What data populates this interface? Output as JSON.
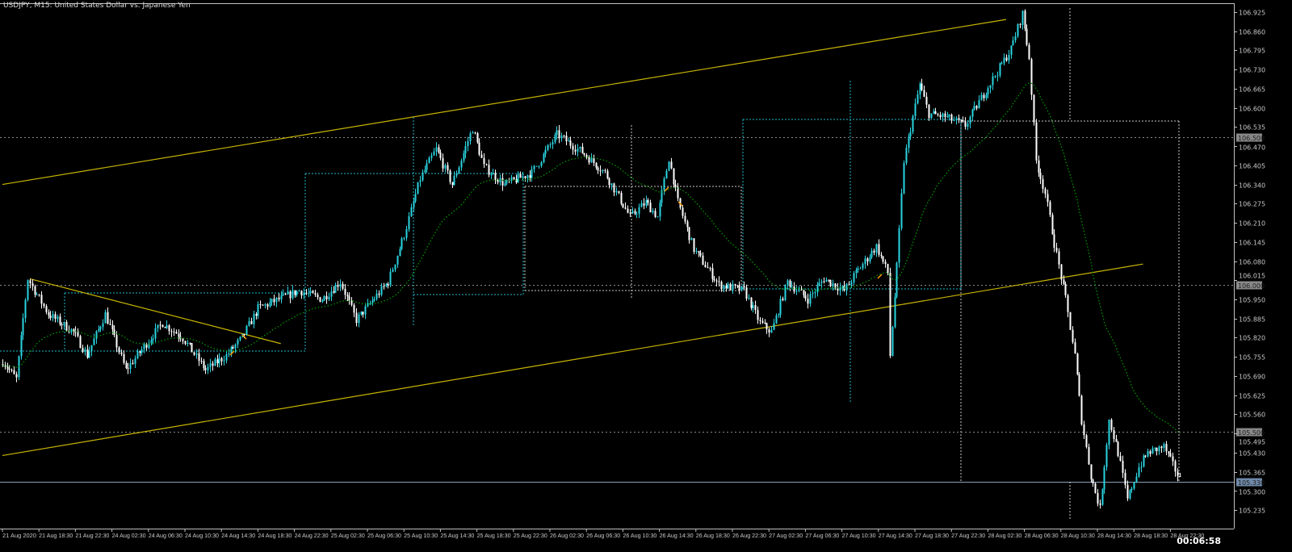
{
  "window": {
    "title": "USDJPY, M15:  United States Dollar vs. Japanese Yen",
    "countdown": "00:06:58"
  },
  "colors": {
    "background": "#000000",
    "axis": "#c0c0c0",
    "bull": "#2ad4e0",
    "bear": "#ffffff",
    "ma": "#00a000",
    "channel": "#c8b400",
    "box_cyan": "#20b8c8",
    "box_white": "#c8c8c8",
    "bid_line": "#8aa0b8"
  },
  "chart_data": {
    "type": "candlestick",
    "symbol": "USDJPY",
    "timeframe": "M15",
    "ylim": [
      105.21,
      106.95
    ],
    "y_ticks": [
      "106.925",
      "106.860",
      "106.795",
      "106.730",
      "106.665",
      "106.600",
      "106.535",
      "106.470",
      "106.405",
      "106.340",
      "106.275",
      "106.210",
      "106.145",
      "106.080",
      "106.015",
      "105.950",
      "105.885",
      "105.820",
      "105.755",
      "105.690",
      "105.625",
      "105.560",
      "105.495",
      "105.430",
      "105.365",
      "105.300",
      "105.235"
    ],
    "price_levels": [
      {
        "label": "106.500",
        "value": 106.5,
        "style": "dashed"
      },
      {
        "label": "106.000",
        "value": 106.0,
        "style": "dashed"
      },
      {
        "label": "105.500",
        "value": 105.5,
        "style": "dashed"
      },
      {
        "label": "105.330",
        "value": 105.33,
        "style": "bid"
      }
    ],
    "x_ticks": [
      "21 Aug 2020",
      "21 Aug 18:30",
      "21 Aug 22:30",
      "24 Aug 02:30",
      "24 Aug 06:30",
      "24 Aug 10:30",
      "24 Aug 14:30",
      "24 Aug 18:30",
      "24 Aug 22:30",
      "25 Aug 02:30",
      "25 Aug 06:30",
      "25 Aug 10:30",
      "25 Aug 14:30",
      "25 Aug 18:30",
      "25 Aug 22:30",
      "26 Aug 02:30",
      "26 Aug 06:30",
      "26 Aug 10:30",
      "26 Aug 14:30",
      "26 Aug 18:30",
      "26 Aug 22:30",
      "27 Aug 02:30",
      "27 Aug 06:30",
      "27 Aug 10:30",
      "27 Aug 14:30",
      "27 Aug 18:30",
      "27 Aug 22:30",
      "28 Aug 02:30",
      "28 Aug 06:30",
      "28 Aug 10:30",
      "28 Aug 14:30",
      "28 Aug 18:30",
      "28 Aug 22:30"
    ],
    "price_path": [
      [
        "21 14:45",
        105.73
      ],
      [
        "21 16:00",
        105.68
      ],
      [
        "21 17:15",
        106.02
      ],
      [
        "21 19:30",
        105.9
      ],
      [
        "21 22:15",
        105.84
      ],
      [
        "21 23:45",
        105.76
      ],
      [
        "24 01:45",
        105.9
      ],
      [
        "24 04:00",
        105.71
      ],
      [
        "24 08:00",
        105.87
      ],
      [
        "24 10:15",
        105.82
      ],
      [
        "24 12:45",
        105.71
      ],
      [
        "24 15:00",
        105.76
      ],
      [
        "24 16:45",
        105.82
      ],
      [
        "24 18:30",
        105.92
      ],
      [
        "24 23:00",
        105.98
      ],
      [
        "25 01:30",
        105.95
      ],
      [
        "25 03:30",
        106.01
      ],
      [
        "25 05:15",
        105.88
      ],
      [
        "25 08:45",
        106.01
      ],
      [
        "25 10:30",
        106.17
      ],
      [
        "25 12:15",
        106.36
      ],
      [
        "25 14:00",
        106.46
      ],
      [
        "25 15:45",
        106.34
      ],
      [
        "25 18:00",
        106.53
      ],
      [
        "25 19:15",
        106.4
      ],
      [
        "25 21:30",
        106.34
      ],
      [
        "26 00:30",
        106.38
      ],
      [
        "26 03:15",
        106.51
      ],
      [
        "26 06:00",
        106.45
      ],
      [
        "26 08:30",
        106.38
      ],
      [
        "26 11:15",
        106.23
      ],
      [
        "26 13:00",
        106.28
      ],
      [
        "26 14:15",
        106.23
      ],
      [
        "26 15:30",
        106.43
      ],
      [
        "26 16:30",
        106.28
      ],
      [
        "26 18:15",
        106.12
      ],
      [
        "26 21:00",
        106.0
      ],
      [
        "26 23:45",
        105.98
      ],
      [
        "27 01:30",
        105.87
      ],
      [
        "27 02:45",
        105.84
      ],
      [
        "27 04:30",
        106.01
      ],
      [
        "27 06:45",
        105.95
      ],
      [
        "27 08:30",
        106.02
      ],
      [
        "27 10:45",
        105.98
      ],
      [
        "27 12:00",
        106.04
      ],
      [
        "27 14:15",
        106.13
      ],
      [
        "27 15:30",
        106.04
      ],
      [
        "27 15:45",
        105.76
      ],
      [
        "27 16:30",
        106.06
      ],
      [
        "27 17:15",
        106.42
      ],
      [
        "27 19:00",
        106.68
      ],
      [
        "27 20:00",
        106.58
      ],
      [
        "27 21:45",
        106.57
      ],
      [
        "28 00:00",
        106.54
      ],
      [
        "28 02:15",
        106.66
      ],
      [
        "28 05:00",
        106.8
      ],
      [
        "28 06:15",
        106.92
      ],
      [
        "28 07:00",
        106.77
      ],
      [
        "28 07:45",
        106.42
      ],
      [
        "28 08:45",
        106.31
      ],
      [
        "28 09:45",
        106.14
      ],
      [
        "28 11:00",
        105.95
      ],
      [
        "28 12:00",
        105.76
      ],
      [
        "28 12:45",
        105.54
      ],
      [
        "28 13:45",
        105.35
      ],
      [
        "28 14:45",
        105.24
      ],
      [
        "28 15:45",
        105.54
      ],
      [
        "28 16:45",
        105.43
      ],
      [
        "28 17:45",
        105.27
      ],
      [
        "28 19:00",
        105.38
      ],
      [
        "28 20:00",
        105.43
      ],
      [
        "28 21:45",
        105.45
      ],
      [
        "28 23:30",
        105.34
      ]
    ],
    "indicator": {
      "type": "moving-average",
      "style": "dotted"
    },
    "trendlines": [
      {
        "name": "channel-upper",
        "from": [
          "21 14:30",
          106.34
        ],
        "to": [
          "28 04:30",
          106.9
        ]
      },
      {
        "name": "channel-lower",
        "from": [
          "21 14:30",
          105.42
        ],
        "to": [
          "28 19:30",
          106.07
        ]
      },
      {
        "name": "descending-trendline",
        "from": [
          "21 17:30",
          106.02
        ],
        "to": [
          "24 21:00",
          105.8
        ]
      }
    ]
  }
}
